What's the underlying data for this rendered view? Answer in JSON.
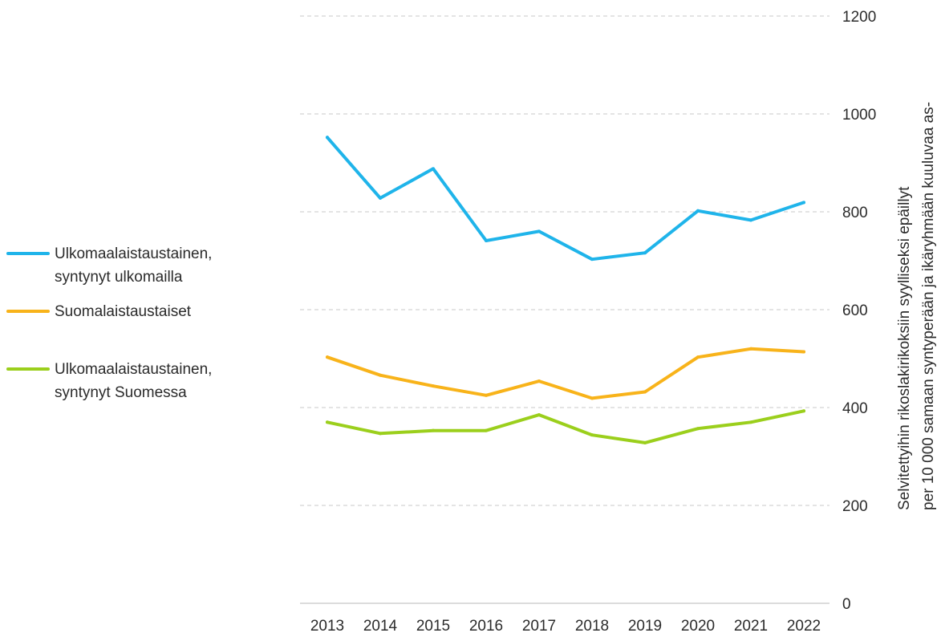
{
  "chart_data": {
    "type": "line",
    "title": "",
    "xlabel": "",
    "ylabel_lines": [
      "Selvitettyihin rikoslakirikoksiin syylliseksi epäillyt",
      "per 10 000 samaan syntyperään ja ikäryhmään kuuluvaa as-"
    ],
    "x": [
      "2013",
      "2014",
      "2015",
      "2016",
      "2017",
      "2018",
      "2019",
      "2020",
      "2021",
      "2022"
    ],
    "ylim": [
      0,
      1200
    ],
    "yticks": [
      "0",
      "200",
      "400",
      "600",
      "800",
      "1000",
      "1200"
    ],
    "y_axis_side": "right",
    "grid": "horizontal-dashed",
    "legend_position": "left",
    "series": [
      {
        "name_lines": [
          "Ulkomaalaistaustainen,",
          "syntynyt ulkomailla"
        ],
        "color": "#1fb4ea",
        "values": [
          952,
          828,
          888,
          741,
          760,
          703,
          716,
          802,
          783,
          819
        ]
      },
      {
        "name_lines": [
          "Suomalaistaustaiset"
        ],
        "color": "#f8b31a",
        "values": [
          503,
          466,
          444,
          425,
          454,
          419,
          432,
          503,
          520,
          514
        ]
      },
      {
        "name_lines": [
          "Ulkomaalaistaustainen,",
          "syntynyt Suomessa"
        ],
        "color": "#9bcf1c",
        "values": [
          370,
          347,
          353,
          353,
          385,
          344,
          328,
          357,
          370,
          393
        ]
      }
    ]
  }
}
